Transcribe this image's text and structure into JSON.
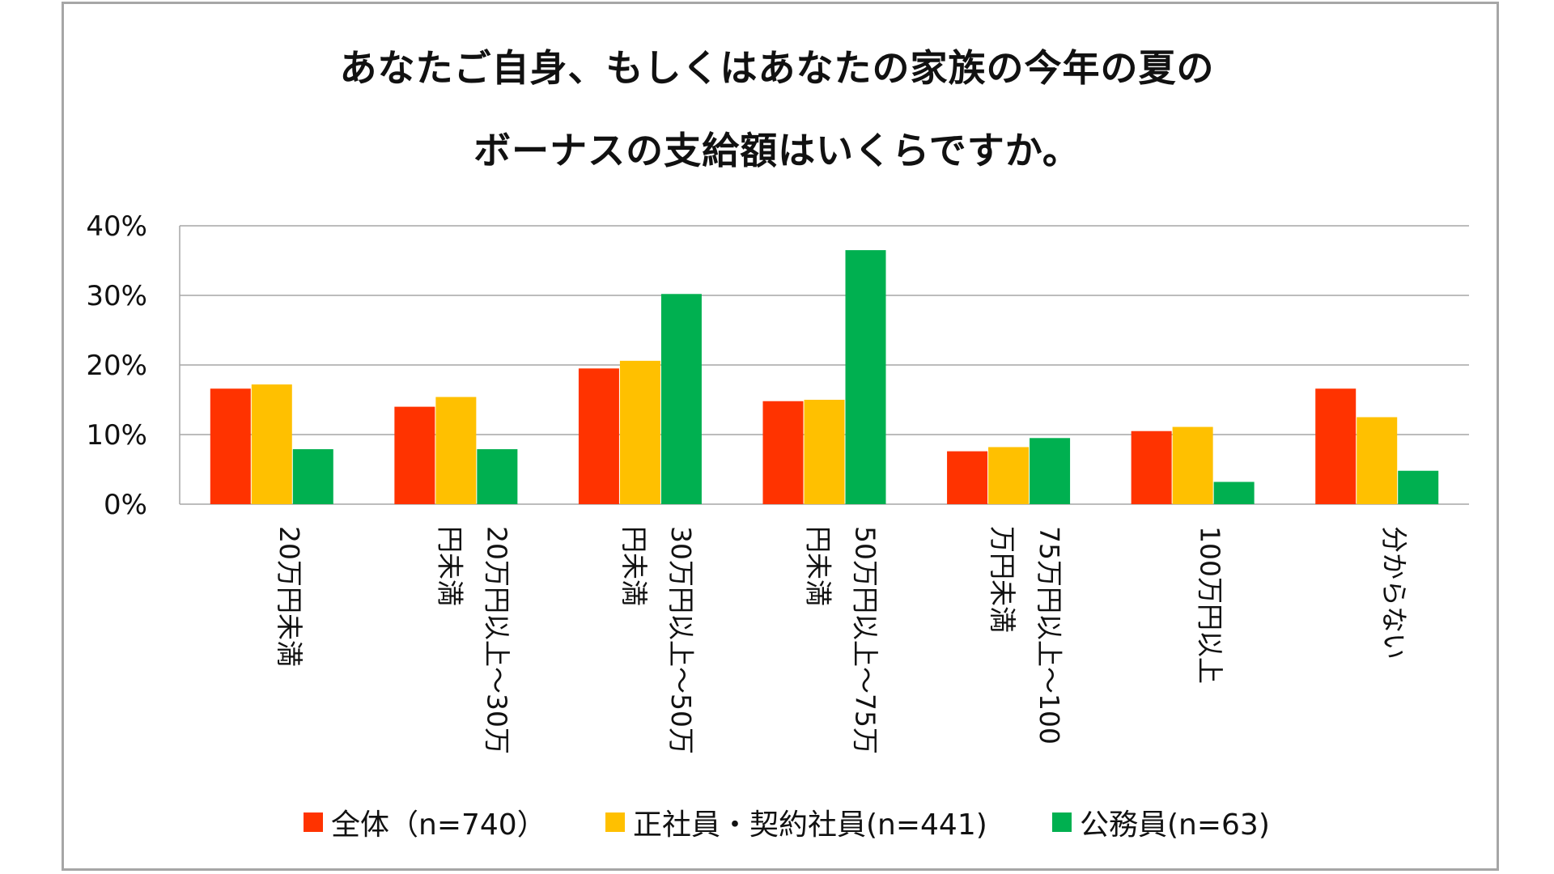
{
  "title_lines": [
    "あなたご自身、もしくはあなたの家族の今年の夏の",
    "ボーナスの支給額はいくらですか。"
  ],
  "colors": {
    "series_all": "#ff3300",
    "series_regular": "#ffc000",
    "series_public": "#00b050",
    "grid": "#a6a6a6",
    "frame": "#a6a6a6"
  },
  "chart_data": {
    "type": "bar",
    "title": "あなたご自身、もしくはあなたの家族の今年の夏のボーナスの支給額はいくらですか。",
    "categories": [
      "20万円未満",
      "20万円以上～30万円未満",
      "30万円以上～50万円未満",
      "50万円以上～75万円未満",
      "75万円以上～100万円未満",
      "100万円以上",
      "分からない"
    ],
    "category_label_lines": [
      [
        "20万円未満"
      ],
      [
        "20万円以上～30万",
        "円未満"
      ],
      [
        "30万円以上～50万",
        "円未満"
      ],
      [
        "50万円以上～75万",
        "円未満"
      ],
      [
        "75万円以上～100",
        "万円未満"
      ],
      [
        "100万円以上"
      ],
      [
        "分からない"
      ]
    ],
    "series": [
      {
        "name": "全体（n=740）",
        "values": [
          16.6,
          14.0,
          19.5,
          14.8,
          7.6,
          10.5,
          16.6
        ]
      },
      {
        "name": "正社員・契約社員(n=441)",
        "values": [
          17.2,
          15.4,
          20.6,
          15.0,
          8.2,
          11.1,
          12.5
        ]
      },
      {
        "name": "公務員(n=63)",
        "values": [
          7.9,
          7.9,
          30.2,
          36.5,
          9.5,
          3.2,
          4.8
        ]
      }
    ],
    "ylim": [
      0,
      40
    ],
    "yticks": [
      0,
      10,
      20,
      30,
      40
    ],
    "ytick_labels": [
      "0%",
      "10%",
      "20%",
      "30%",
      "40%"
    ],
    "grid": true,
    "legend_position": "bottom"
  }
}
